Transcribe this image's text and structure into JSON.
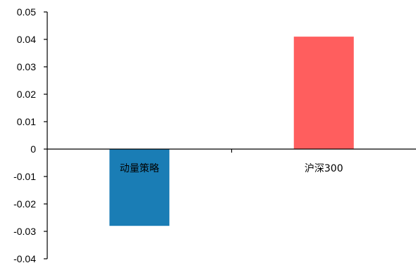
{
  "chart_data": {
    "type": "bar",
    "categories": [
      "动量策略",
      "沪深300"
    ],
    "values": [
      -0.028,
      0.041
    ],
    "colors": [
      "#1a7db5",
      "#ff5e5e"
    ],
    "ylim": [
      -0.04,
      0.05
    ],
    "yticks": [
      "0.05",
      "0.04",
      "0.03",
      "0.02",
      "0.01",
      "0",
      "-0.01",
      "-0.02",
      "-0.03",
      "-0.04"
    ],
    "ytick_values": [
      0.05,
      0.04,
      0.03,
      0.02,
      0.01,
      0,
      -0.01,
      -0.02,
      -0.03,
      -0.04
    ],
    "title": "",
    "xlabel": "",
    "ylabel": "",
    "grid": false,
    "legend": "none"
  }
}
